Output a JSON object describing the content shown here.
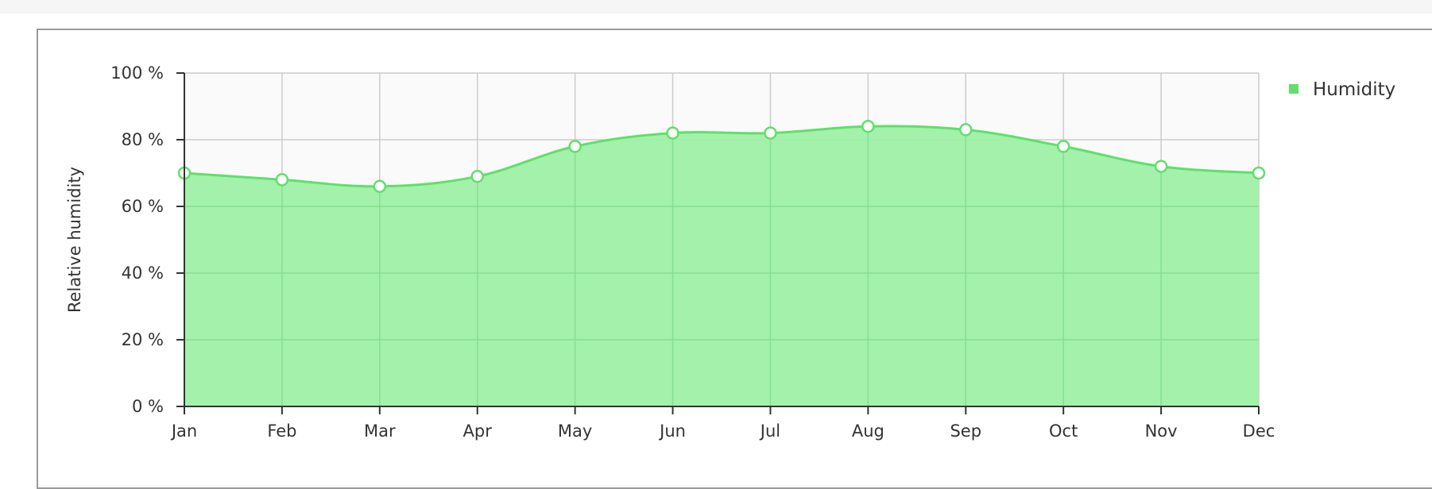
{
  "colors": {
    "series_line": "#5fe06a",
    "series_fill": "#9ef0a5",
    "marker_fill": "#ffffff",
    "grid": "#cccccc",
    "plot_background": "#fafafa",
    "axis": "#333333"
  },
  "chart_data": {
    "type": "area",
    "categories": [
      "Jan",
      "Feb",
      "Mar",
      "Apr",
      "May",
      "Jun",
      "Jul",
      "Aug",
      "Sep",
      "Oct",
      "Nov",
      "Dec"
    ],
    "series": [
      {
        "name": "Humidity",
        "values": [
          70,
          68,
          66,
          69,
          78,
          82,
          82,
          84,
          83,
          78,
          72,
          70
        ]
      }
    ],
    "ylabel": "Relative humidity",
    "ylim": [
      0,
      100
    ],
    "yticks": [
      0,
      20,
      40,
      60,
      80,
      100
    ],
    "ytick_labels": [
      "0 %",
      "20 %",
      "40 %",
      "60 %",
      "80 %",
      "100 %"
    ],
    "grid": true,
    "legend_position": "top-right"
  }
}
